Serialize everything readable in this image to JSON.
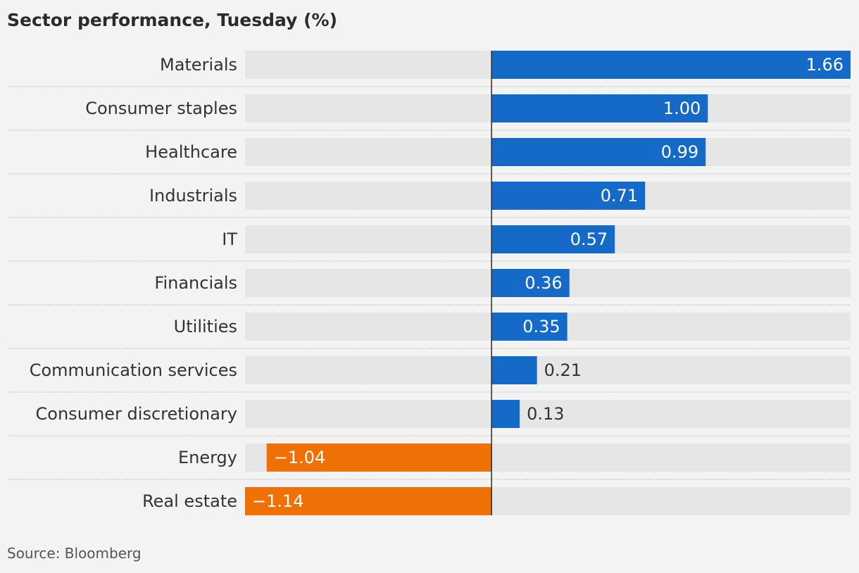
{
  "title": "Sector performance, Tuesday (%)",
  "source": "Source: Bloomberg",
  "colors": {
    "positive": "#1569c7",
    "negative": "#ef7106",
    "track": "#e6e6e6",
    "baseline": "#2b2b2b",
    "separator": "#c3c3c3",
    "label": "#333333",
    "inside_value": "#ffffff"
  },
  "chart_data": {
    "type": "bar",
    "orientation": "horizontal",
    "title": "Sector performance, Tuesday (%)",
    "categories": [
      "Materials",
      "Consumer staples",
      "Healthcare",
      "Industrials",
      "IT",
      "Financials",
      "Utilities",
      "Communication services",
      "Consumer discretionary",
      "Energy",
      "Real estate"
    ],
    "values": [
      1.66,
      1.0,
      0.99,
      0.71,
      0.57,
      0.36,
      0.35,
      0.21,
      0.13,
      -1.04,
      -1.14
    ],
    "value_labels": [
      "1.66",
      "1.00",
      "0.99",
      "0.71",
      "0.57",
      "0.36",
      "0.35",
      "0.21",
      "0.13",
      "−1.04",
      "−1.14"
    ],
    "xlim": [
      -1.14,
      1.66
    ],
    "grid": false,
    "legend": "none"
  }
}
